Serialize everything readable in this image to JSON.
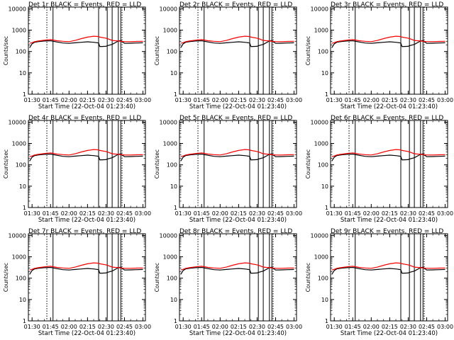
{
  "figure": {
    "xlabel": "Start Time (22-Oct-04 01:23:40)",
    "ylabel": "Counts/sec"
  },
  "panel_titles": [
    "Det 1r BLACK = Events, RED = LLD",
    "Det 2r BLACK = Events, RED = LLD",
    "Det 3r BLACK = Events, RED = LLD",
    "Det 4r BLACK = Events, RED = LLD",
    "Det 5r BLACK = Events, RED = LLD",
    "Det 6r BLACK = Events, RED = LLD",
    "Det 7r BLACK = Events, RED = LLD",
    "Det 8r BLACK = Events, RED = LLD",
    "Det 9r BLACK = Events, RED = LLD"
  ],
  "colors": {
    "events": "#000000",
    "lld": "#ff0000",
    "axes": "#000000",
    "background": "#ffffff"
  },
  "chart_data": {
    "type": "line",
    "grid": false,
    "yscale": "log",
    "xlim": [
      "01:27",
      "03:02"
    ],
    "ylim": [
      1,
      12000
    ],
    "x_ticks": [
      "01:30",
      "01:45",
      "02:00",
      "02:15",
      "02:30",
      "02:45",
      "03:00"
    ],
    "y_ticks": [
      "1",
      "10",
      "100",
      "1000",
      "10000"
    ],
    "y_tick_values": [
      1,
      10,
      100,
      1000,
      10000
    ],
    "dotted_vlines": [
      "01:42",
      "02:43"
    ],
    "solid_vlines": [
      "01:47",
      "02:24",
      "02:31",
      "02:35",
      "02:40",
      "02:42"
    ],
    "x": [
      "01:28",
      "01:30",
      "01:32",
      "01:35",
      "01:40",
      "01:45",
      "01:50",
      "01:55",
      "02:00",
      "02:05",
      "02:10",
      "02:15",
      "02:20",
      "02:24",
      "02:25",
      "02:30",
      "02:31",
      "02:35",
      "02:40",
      "02:42",
      "02:45",
      "02:50",
      "02:55",
      "03:00"
    ],
    "series": [
      {
        "name": "Events",
        "color": "#000000",
        "values": [
          150,
          230,
          270,
          290,
          310,
          320,
          280,
          250,
          240,
          255,
          270,
          285,
          270,
          250,
          170,
          175,
          185,
          215,
          310,
          330,
          240,
          245,
          250,
          255
        ]
      },
      {
        "name": "LLD",
        "color": "#ff0000",
        "values": [
          240,
          260,
          290,
          310,
          340,
          360,
          320,
          300,
          290,
          330,
          400,
          470,
          520,
          500,
          470,
          420,
          400,
          330,
          310,
          300,
          290,
          290,
          295,
          300
        ]
      }
    ]
  }
}
